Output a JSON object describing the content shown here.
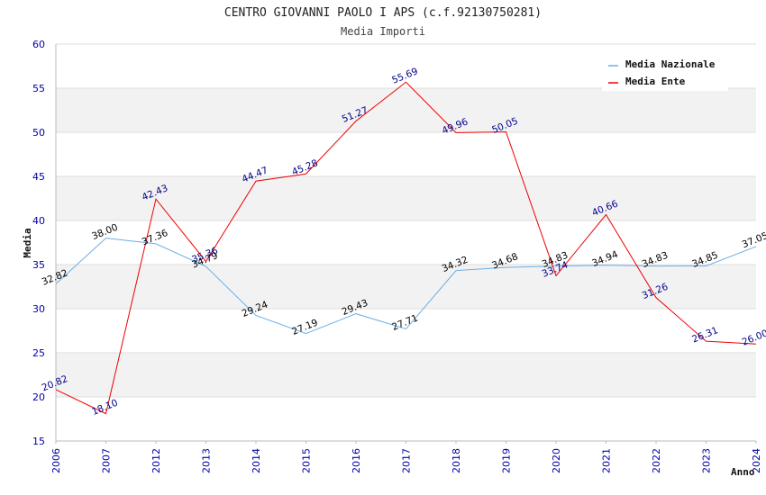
{
  "chart_data": {
    "type": "line",
    "title": "CENTRO GIOVANNI PAOLO I APS (c.f.92130750281)",
    "subtitle": "Media Importi",
    "xlabel": "Anno",
    "ylabel": "Media",
    "ylim": [
      15,
      60
    ],
    "yticks": [
      15,
      20,
      25,
      30,
      35,
      40,
      45,
      50,
      55,
      60
    ],
    "categories": [
      "2006",
      "2007",
      "2012",
      "2013",
      "2014",
      "2015",
      "2016",
      "2017",
      "2018",
      "2019",
      "2020",
      "2021",
      "2022",
      "2023",
      "2024"
    ],
    "legend_position": "top-right",
    "series": [
      {
        "name": "Media Nazionale",
        "color": "#6aaee8",
        "label_color": "#000000",
        "values": [
          32.82,
          38.0,
          37.36,
          34.79,
          29.24,
          27.19,
          29.43,
          27.71,
          34.32,
          34.68,
          34.83,
          34.94,
          34.83,
          34.85,
          37.05
        ],
        "labels": [
          "32.82",
          "38.00",
          "37.36",
          "34.79",
          "29.24",
          "27.19",
          "29.43",
          "27.71",
          "34.32",
          "34.68",
          "34.83",
          "34.94",
          "34.83",
          "34.85",
          "37.05"
        ]
      },
      {
        "name": "Media Ente",
        "color": "#ee0000",
        "label_color": "#00008b",
        "values": [
          20.82,
          18.1,
          42.43,
          35.36,
          44.47,
          45.28,
          51.27,
          55.69,
          49.96,
          50.05,
          33.74,
          40.66,
          31.26,
          26.31,
          26.0
        ],
        "labels": [
          "20.82",
          "18.10",
          "42.43",
          "35.36",
          "44.47",
          "45.28",
          "51.27",
          "55.69",
          "49.96",
          "50.05",
          "33.74",
          "40.66",
          "31.26",
          "26.31",
          "26.00"
        ]
      }
    ]
  }
}
